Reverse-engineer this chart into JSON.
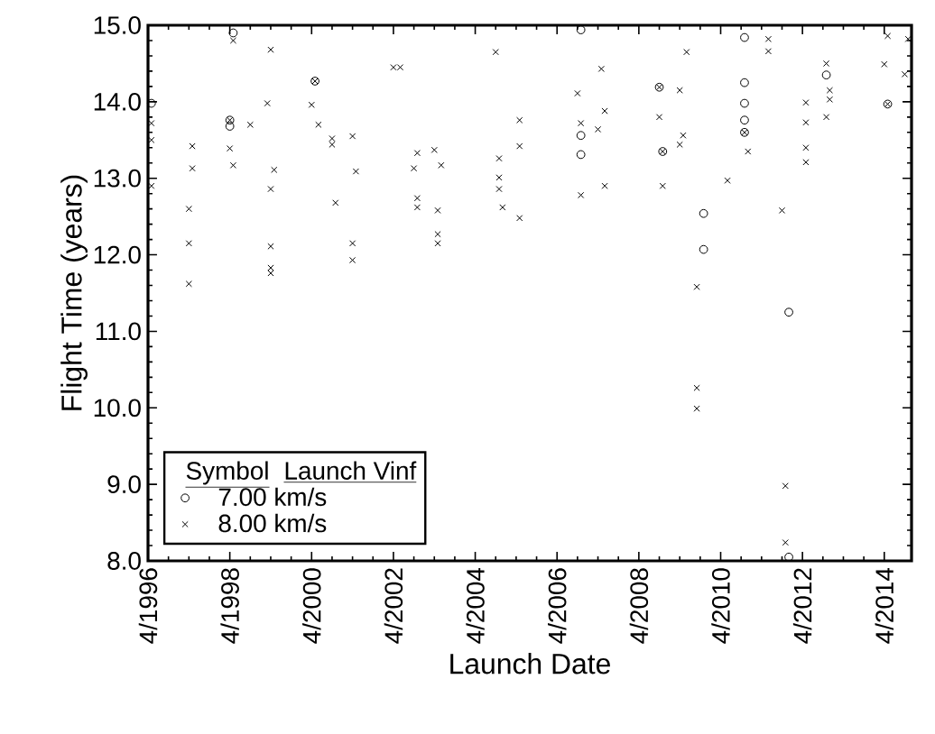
{
  "chart_data": {
    "type": "scatter",
    "xlabel": "Launch Date",
    "ylabel": "Flight Time (years)",
    "legend_title": "Launch Vinf",
    "annotations": [
      "Symbol"
    ],
    "legend": "bottom left",
    "xlim": [
      "1996-04",
      "2014-12"
    ],
    "xticks": [
      {
        "value": "1996-04",
        "label": "4/1996"
      },
      {
        "value": "1998-04",
        "label": "4/1998"
      },
      {
        "value": "2000-04",
        "label": "4/2000"
      },
      {
        "value": "2002-04",
        "label": "4/2002"
      },
      {
        "value": "2004-04",
        "label": "4/2004"
      },
      {
        "value": "2006-04",
        "label": "4/2006"
      },
      {
        "value": "2008-04",
        "label": "4/2008"
      },
      {
        "value": "2010-04",
        "label": "4/2010"
      },
      {
        "value": "2012-04",
        "label": "4/2012"
      },
      {
        "value": "2014-04",
        "label": "4/2014"
      }
    ],
    "ylim": [
      8,
      15
    ],
    "yticks": [
      {
        "value": 8,
        "label": "8.0"
      },
      {
        "value": 9,
        "label": "9.0"
      },
      {
        "value": 10,
        "label": "10.0"
      },
      {
        "value": 11,
        "label": "11.0"
      },
      {
        "value": 12,
        "label": "12.0"
      },
      {
        "value": 13,
        "label": "13.0"
      },
      {
        "value": 14,
        "label": "14.0"
      },
      {
        "value": 15,
        "label": "15.0"
      }
    ],
    "series": [
      {
        "name": "7.00 km/s",
        "color": "#000000",
        "marker": "circle",
        "x": [
          "1996-05",
          "1998-05",
          "2000-05",
          "1998-04",
          "1998-04",
          "2006-11",
          "2006-11",
          "2006-11",
          "2010-11",
          "2012-11",
          "2010-11",
          "2008-10",
          "2010-11",
          "2014-05",
          "2010-11",
          "2010-11",
          "2008-11",
          "2009-11",
          "2009-11",
          "2011-12",
          "2011-12"
        ],
        "values": [
          13.98,
          14.9,
          14.27,
          13.76,
          13.68,
          14.94,
          13.56,
          13.31,
          14.84,
          14.35,
          14.25,
          14.19,
          13.98,
          13.97,
          13.76,
          13.6,
          13.35,
          12.54,
          12.07,
          11.25,
          8.05
        ]
      },
      {
        "name": "8.00 km/s",
        "color": "#000000",
        "marker": "cross",
        "x": [
          "1996-05",
          "1996-05",
          "1996-05",
          "1998-05",
          "1999-04",
          "2002-04",
          "2002-06",
          "2000-05",
          "1999-03",
          "2000-04",
          "1998-04",
          "1998-10",
          "2000-06",
          "2000-10",
          "2000-10",
          "2001-04",
          "1997-05",
          "1998-04",
          "1998-05",
          "1997-05",
          "1999-05",
          "2001-05",
          "1999-04",
          "2000-11",
          "1997-04",
          "1997-04",
          "1999-04",
          "2001-04",
          "2001-04",
          "1999-04",
          "1999-04",
          "1997-04",
          "2004-10",
          "2007-05",
          "2006-10",
          "2007-06",
          "2005-05",
          "2006-11",
          "2007-04",
          "2005-05",
          "2003-04",
          "2002-11",
          "2002-10",
          "2003-06",
          "2004-11",
          "2004-11",
          "2004-11",
          "2007-06",
          "2006-11",
          "2002-11",
          "2002-11",
          "2003-05",
          "2004-12",
          "2005-05",
          "2003-05",
          "2003-05",
          "2011-06",
          "2011-06",
          "2014-05",
          "2014-11",
          "2009-06",
          "2012-11",
          "2014-04",
          "2014-10",
          "2008-10",
          "2009-04",
          "2012-05",
          "2012-12",
          "2012-12",
          "2014-05",
          "2008-10",
          "2010-11",
          "2012-05",
          "2012-11",
          "2009-05",
          "2009-04",
          "2008-11",
          "2010-12",
          "2012-05",
          "2012-05",
          "2008-11",
          "2010-06",
          "2011-10",
          "2009-09",
          "2009-09",
          "2009-09",
          "2011-11",
          "2011-11"
        ],
        "values": [
          13.72,
          13.5,
          12.9,
          14.8,
          14.68,
          14.45,
          14.45,
          14.27,
          13.98,
          13.96,
          13.76,
          13.7,
          13.7,
          13.52,
          13.44,
          13.55,
          13.42,
          13.39,
          13.17,
          13.13,
          13.11,
          13.09,
          12.86,
          12.68,
          12.6,
          12.15,
          12.11,
          12.15,
          11.93,
          11.83,
          11.76,
          11.62,
          14.65,
          14.43,
          14.11,
          13.88,
          13.76,
          13.72,
          13.64,
          13.42,
          13.37,
          13.33,
          13.13,
          13.17,
          13.26,
          13.01,
          12.86,
          12.9,
          12.78,
          12.74,
          12.62,
          12.58,
          12.62,
          12.48,
          12.27,
          12.15,
          14.82,
          14.66,
          14.86,
          14.82,
          14.65,
          14.5,
          14.49,
          14.36,
          14.19,
          14.15,
          13.99,
          14.03,
          14.15,
          13.97,
          13.8,
          13.6,
          13.73,
          13.8,
          13.56,
          13.44,
          13.35,
          13.35,
          13.4,
          13.21,
          12.9,
          12.97,
          12.58,
          11.58,
          10.26,
          9.99,
          8.98,
          8.24
        ]
      }
    ]
  }
}
